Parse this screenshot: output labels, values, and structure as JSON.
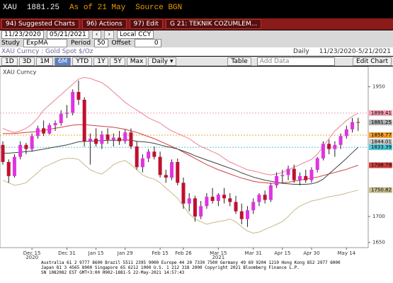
{
  "header": {
    "ticker": "XAU",
    "price": "1881.25",
    "as_of": "As of 21 May",
    "source": "Source BGN"
  },
  "toolbar": {
    "suggested": "94) Suggested Charts",
    "actions": "96) Actions",
    "edit": "97) Edit",
    "template": "G 21: TEKNIK COZUMLEM..."
  },
  "controls": {
    "date_start": "11/23/2020",
    "date_end": "05/21/2021",
    "currency": "Local CCY",
    "study_label": "Study",
    "study": "ExpMA",
    "period_label": "Period",
    "period": "50",
    "offset_label": "Offset",
    "offset": "0"
  },
  "security": {
    "name": "XAU Curncy : Gold Spot",
    "unit": "$/Oz",
    "frequency": "Daily",
    "range": "11/23/2020-5/21/2021"
  },
  "range_buttons": [
    "1D",
    "3D",
    "1M",
    "6M",
    "YTD",
    "1Y",
    "5Y",
    "Max"
  ],
  "active_range": "6M",
  "tools": {
    "period_select": "Daily ▾",
    "table": "Table",
    "add_data": "Add Data",
    "edit_chart": "Edit Chart"
  },
  "chart_data": {
    "type": "candlestick",
    "legend_label": "XAU Curncy",
    "categories": [
      null,
      null,
      null,
      null,
      null,
      "Dec 15",
      null,
      null,
      null,
      null,
      null,
      "Dec 31",
      null,
      null,
      null,
      null,
      "Jan 15",
      null,
      null,
      null,
      null,
      "Jan 29",
      null,
      null,
      null,
      null,
      null,
      "Feb 15",
      null,
      null,
      null,
      "Feb 26",
      null,
      null,
      null,
      null,
      null,
      "Mar 15",
      null,
      null,
      null,
      null,
      null,
      "Mar 31",
      null,
      null,
      null,
      null,
      "Apr 15",
      null,
      null,
      null,
      null,
      "Apr 30",
      null,
      null,
      null,
      null,
      null,
      "May 14",
      null,
      null
    ],
    "year_labels": [
      null,
      null,
      null,
      null,
      null,
      "2020",
      null,
      null,
      null,
      null,
      null,
      null,
      null,
      null,
      null,
      null,
      null,
      null,
      null,
      null,
      null,
      null,
      null,
      null,
      null,
      null,
      null,
      null,
      null,
      null,
      null,
      null,
      null,
      null,
      null,
      null,
      null,
      "2021",
      null,
      null,
      null,
      null,
      null,
      null,
      null,
      null,
      null,
      null,
      null,
      null,
      null,
      null,
      null,
      null,
      null,
      null,
      null,
      null,
      null,
      null,
      null,
      null
    ],
    "open": [
      1838,
      1805,
      1778,
      1815,
      1838,
      1830,
      1855,
      1870,
      1860,
      1876,
      1880,
      1898,
      1900,
      1940,
      1925,
      1845,
      1850,
      1840,
      1858,
      1848,
      1852,
      1845,
      1862,
      1835,
      1795,
      1812,
      1825,
      1815,
      1780,
      1775,
      1805,
      1765,
      1725,
      1735,
      1700,
      1720,
      1738,
      1730,
      1742,
      1735,
      1728,
      1710,
      1695,
      1712,
      1728,
      1742,
      1732,
      1760,
      1778,
      1780,
      1792,
      1770,
      1778,
      1770,
      1790,
      1812,
      1840,
      1830,
      1838,
      1855,
      1868,
      1882
    ],
    "high": [
      1845,
      1810,
      1820,
      1845,
      1842,
      1860,
      1875,
      1885,
      1880,
      1885,
      1905,
      1915,
      1945,
      1962,
      1930,
      1860,
      1870,
      1865,
      1870,
      1860,
      1865,
      1868,
      1870,
      1845,
      1820,
      1830,
      1835,
      1825,
      1790,
      1810,
      1812,
      1775,
      1745,
      1740,
      1730,
      1745,
      1755,
      1745,
      1755,
      1745,
      1740,
      1725,
      1720,
      1735,
      1745,
      1750,
      1765,
      1785,
      1790,
      1798,
      1800,
      1785,
      1790,
      1795,
      1815,
      1845,
      1848,
      1845,
      1860,
      1875,
      1890,
      1890
    ],
    "low": [
      1800,
      1765,
      1775,
      1810,
      1820,
      1825,
      1850,
      1855,
      1858,
      1865,
      1875,
      1890,
      1895,
      1915,
      1835,
      1800,
      1835,
      1830,
      1840,
      1835,
      1838,
      1840,
      1830,
      1790,
      1785,
      1805,
      1810,
      1775,
      1765,
      1770,
      1760,
      1715,
      1710,
      1690,
      1695,
      1715,
      1725,
      1720,
      1725,
      1720,
      1705,
      1685,
      1680,
      1705,
      1720,
      1725,
      1728,
      1755,
      1765,
      1770,
      1765,
      1760,
      1765,
      1765,
      1785,
      1808,
      1820,
      1815,
      1830,
      1850,
      1862,
      1865
    ],
    "close": [
      1805,
      1778,
      1815,
      1838,
      1830,
      1855,
      1870,
      1860,
      1876,
      1880,
      1898,
      1900,
      1940,
      1925,
      1845,
      1850,
      1840,
      1858,
      1848,
      1852,
      1845,
      1862,
      1835,
      1795,
      1812,
      1825,
      1815,
      1780,
      1775,
      1805,
      1765,
      1725,
      1735,
      1700,
      1720,
      1738,
      1730,
      1742,
      1735,
      1728,
      1710,
      1695,
      1712,
      1728,
      1742,
      1732,
      1760,
      1778,
      1780,
      1792,
      1770,
      1778,
      1770,
      1790,
      1812,
      1840,
      1830,
      1838,
      1855,
      1868,
      1882,
      1881.25
    ],
    "up_color": "#e033e0",
    "down_color": "#c01030",
    "lines": [
      {
        "color": "#f08090",
        "values": [
          1870,
          1865,
          1862,
          1865,
          1870,
          1878,
          1890,
          1905,
          1915,
          1925,
          1935,
          1945,
          1955,
          1965,
          1968,
          1966,
          1962,
          1958,
          1950,
          1940,
          1930,
          1920,
          1912,
          1905,
          1898,
          1890,
          1885,
          1880,
          1872,
          1865,
          1860,
          1855,
          1850,
          1842,
          1835,
          1830,
          1825,
          1820,
          1812,
          1805,
          1800,
          1795,
          1790,
          1788,
          1785,
          1782,
          1780,
          1782,
          1785,
          1790,
          1795,
          1800,
          1805,
          1810,
          1820,
          1835,
          1850,
          1865,
          1875,
          1885,
          1893,
          1899.41
        ]
      },
      {
        "color": "#c8b88a",
        "values": [
          1770,
          1765,
          1760,
          1762,
          1765,
          1775,
          1785,
          1795,
          1800,
          1805,
          1810,
          1812,
          1812,
          1810,
          1800,
          1790,
          1785,
          1782,
          1790,
          1800,
          1805,
          1808,
          1800,
          1790,
          1780,
          1775,
          1772,
          1765,
          1755,
          1745,
          1735,
          1720,
          1705,
          1695,
          1690,
          1685,
          1688,
          1690,
          1692,
          1695,
          1690,
          1680,
          1672,
          1668,
          1670,
          1675,
          1680,
          1685,
          1690,
          1700,
          1712,
          1720,
          1725,
          1730,
          1732,
          1735,
          1738,
          1740,
          1742,
          1745,
          1748,
          1750.82
        ]
      },
      {
        "color": "#d04040",
        "values": [
          1860,
          1860,
          1860,
          1861,
          1862,
          1863,
          1864,
          1866,
          1868,
          1870,
          1872,
          1874,
          1876,
          1877,
          1877,
          1876,
          1875,
          1874,
          1873,
          1872,
          1870,
          1868,
          1865,
          1862,
          1858,
          1854,
          1850,
          1845,
          1840,
          1835,
          1830,
          1824,
          1818,
          1812,
          1806,
          1800,
          1795,
          1790,
          1786,
          1782,
          1778,
          1774,
          1771,
          1768,
          1766,
          1765,
          1764,
          1764,
          1765,
          1766,
          1768,
          1770,
          1772,
          1774,
          1776,
          1779,
          1782,
          1785,
          1788,
          1791,
          1795,
          1798.79
        ]
      },
      {
        "color": "#404040",
        "values": [
          1822,
          1822,
          1823,
          1824,
          1825,
          1826,
          1828,
          1830,
          1832,
          1834,
          1836,
          1838,
          1841,
          1844,
          1845,
          1845,
          1846,
          1846,
          1847,
          1847,
          1847,
          1848,
          1847,
          1845,
          1844,
          1843,
          1841,
          1838,
          1835,
          1833,
          1830,
          1826,
          1822,
          1817,
          1813,
          1809,
          1805,
          1801,
          1797,
          1793,
          1789,
          1784,
          1780,
          1776,
          1773,
          1770,
          1768,
          1766,
          1764,
          1763,
          1762,
          1762,
          1762,
          1763,
          1766,
          1772,
          1782,
          1792,
          1802,
          1812,
          1823,
          1833.39
        ]
      }
    ],
    "last_labels": [
      {
        "value": 1899.41,
        "color": "#f4a0b0",
        "dashed": true
      },
      {
        "value": 1881.25,
        "color": "#b0b0b0",
        "dashed": false
      },
      {
        "value": 1856.77,
        "color": "#f0a030",
        "dashed": true
      },
      {
        "value": 1844.01,
        "color": "#c8c8c8",
        "dashed": false
      },
      {
        "value": 1833.39,
        "color": "#50c8d8",
        "dashed": true
      },
      {
        "value": 1798.79,
        "color": "#d04040",
        "dashed": false
      },
      {
        "value": 1750.82,
        "color": "#c8c090",
        "dashed": false
      }
    ],
    "ylim": [
      1640,
      1985
    ],
    "yticks": [
      1650,
      1700,
      1950
    ]
  },
  "footer": [
    "Australia 61 2 9777 8600 Brazil 5511 2395 9000 Europe 44 20 7330 7500 Germany 49 69 9204 1210 Hong Kong 852 2977 6000",
    "Japan 81 3 4565 8900          Singapore 65 6212 1000          U.S. 1 212 318 2000          Copyright 2021 Bloomberg Finance L.P.",
    "SN 1082082 EST  GMT+3:00 H902-1881-5 22-May-2021 14:57:43"
  ]
}
